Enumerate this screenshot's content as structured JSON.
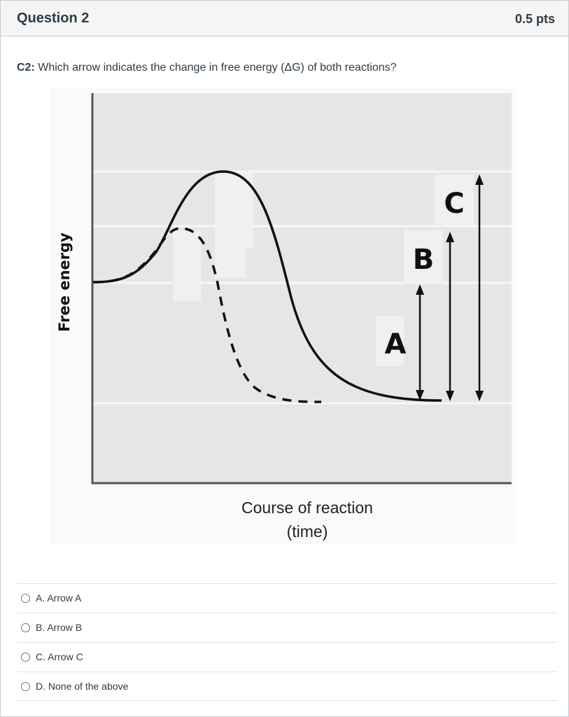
{
  "question": {
    "title": "Question 2",
    "points": "0.5 pts",
    "prompt_code": "C2:",
    "prompt_text": " Which arrow indicates the change in free energy (ΔG) of both reactions?"
  },
  "figure": {
    "y_axis_label": "Free energy",
    "x_axis_label_line1": "Course of reaction",
    "x_axis_label_line2": "(time)",
    "arrow_labels": [
      "A",
      "B",
      "C"
    ],
    "plot_background": "#e6e6e6"
  },
  "answers": [
    {
      "label": "A. Arrow A"
    },
    {
      "label": "B. Arrow B"
    },
    {
      "label": "C. Arrow C"
    },
    {
      "label": "D. None of the above"
    }
  ]
}
